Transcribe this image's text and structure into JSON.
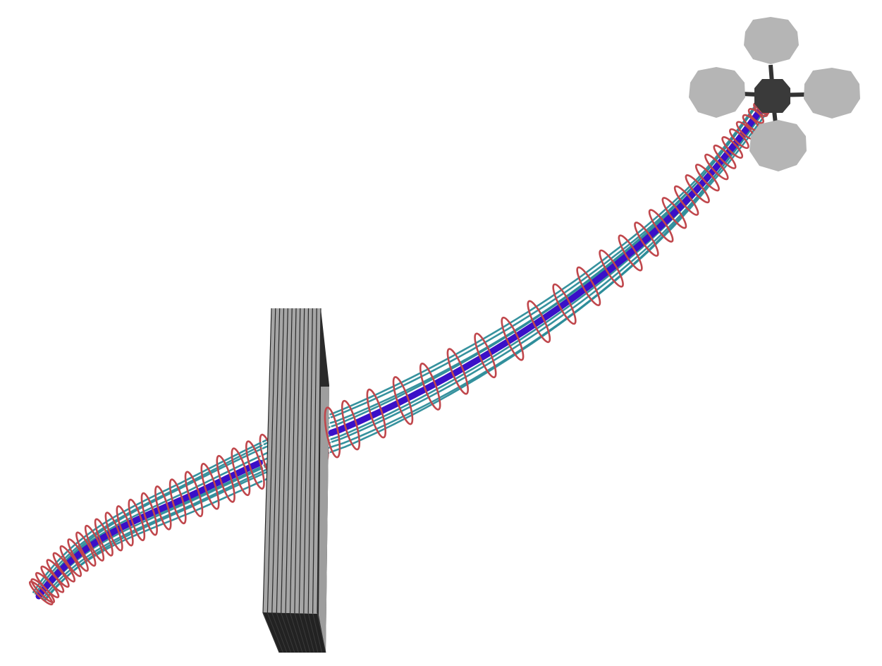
{
  "scene": {
    "description_visible_text": "",
    "colors": {
      "background": "#ffffff",
      "sample_paths": "#2b8c99",
      "mean_path": "#3a10c8",
      "uncertainty_rings": "#c0474c",
      "obstacle_face": "#a6a6a6",
      "obstacle_edge": "#2a2a2a",
      "obstacle_dark": "#232323",
      "drone_body": "#3a3a3a",
      "drone_rotor": "#b5b5b5"
    },
    "trajectory": {
      "sample_count": 10,
      "ring_count": 56
    },
    "icons": {
      "drone": "quadrotor-icon",
      "obstacle": "wall-obstacle-icon"
    }
  }
}
